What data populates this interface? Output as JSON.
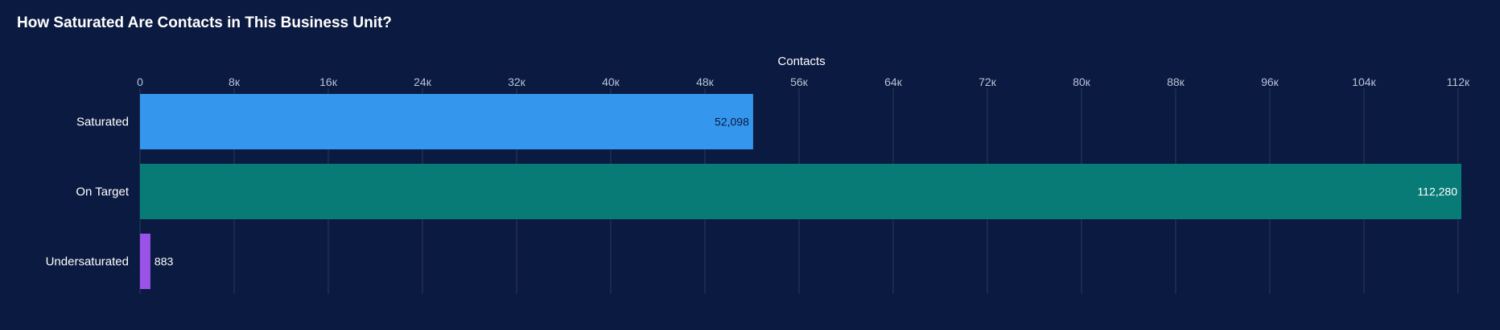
{
  "title": "How Saturated Are Contacts in This Business Unit?",
  "chart_data": {
    "type": "bar",
    "orientation": "horizontal",
    "title": "How Saturated Are Contacts in This Business Unit?",
    "xlabel": "Contacts",
    "ylabel": "",
    "xlim": [
      0,
      112280
    ],
    "x_ticks": [
      0,
      8000,
      16000,
      24000,
      32000,
      40000,
      48000,
      56000,
      64000,
      72000,
      80000,
      88000,
      96000,
      104000,
      112000
    ],
    "x_tick_labels": [
      "0",
      "8к",
      "16к",
      "24к",
      "32к",
      "40к",
      "48к",
      "56к",
      "64к",
      "72к",
      "80к",
      "88к",
      "96к",
      "104к",
      "112к"
    ],
    "axis_position": "top",
    "grid": true,
    "categories": [
      "Saturated",
      "On Target",
      "Undersaturated"
    ],
    "values": [
      52098,
      112280,
      883
    ],
    "value_labels": [
      "52,098",
      "112,280",
      "883"
    ],
    "colors": [
      "#3596ee",
      "#087b76",
      "#9a52e8"
    ],
    "label_colors": [
      "#0b1a40",
      "#ffffff",
      "#ffffff"
    ]
  }
}
